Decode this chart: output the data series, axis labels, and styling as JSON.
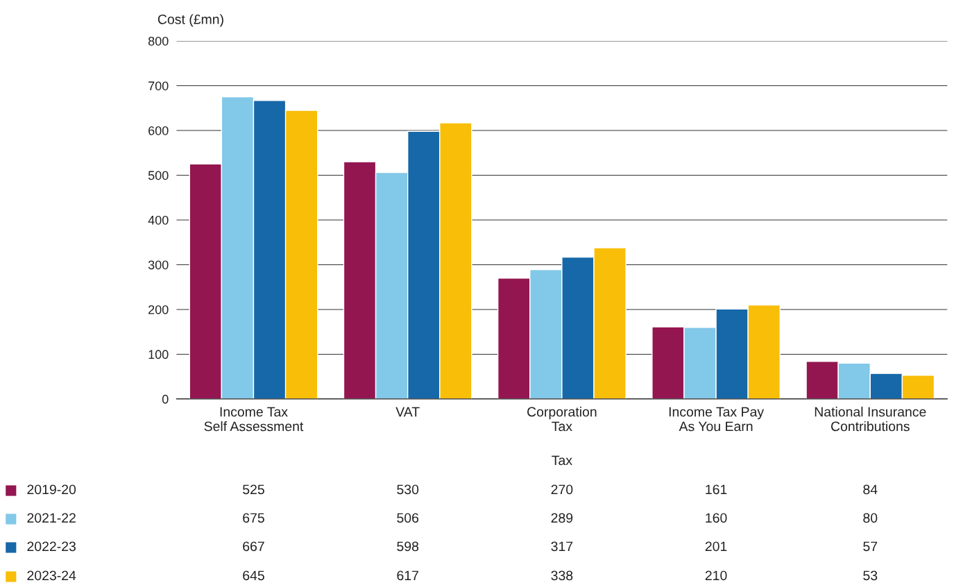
{
  "chart_data": {
    "type": "bar",
    "ylabel": "Cost (£mn)",
    "xlabel": "Tax",
    "categories": [
      "Income Tax\nSelf Assessment",
      "VAT",
      "Corporation\nTax",
      "Income Tax Pay\nAs You Earn",
      "National Insurance\nContributions"
    ],
    "series": [
      {
        "name": "2019-20",
        "color": "#941651",
        "values": [
          525,
          530,
          270,
          161,
          84
        ]
      },
      {
        "name": "2021-22",
        "color": "#82c8e8",
        "values": [
          675,
          506,
          289,
          160,
          80
        ]
      },
      {
        "name": "2022-23",
        "color": "#1668a8",
        "values": [
          667,
          598,
          317,
          201,
          57
        ]
      },
      {
        "name": "2023-24",
        "color": "#f8be08",
        "values": [
          645,
          617,
          338,
          210,
          53
        ]
      }
    ],
    "ylim": [
      0,
      800
    ],
    "yticks": [
      0,
      100,
      200,
      300,
      400,
      500,
      600,
      700,
      800
    ],
    "grid": "y",
    "legend": "bottom",
    "data_labels": true
  }
}
